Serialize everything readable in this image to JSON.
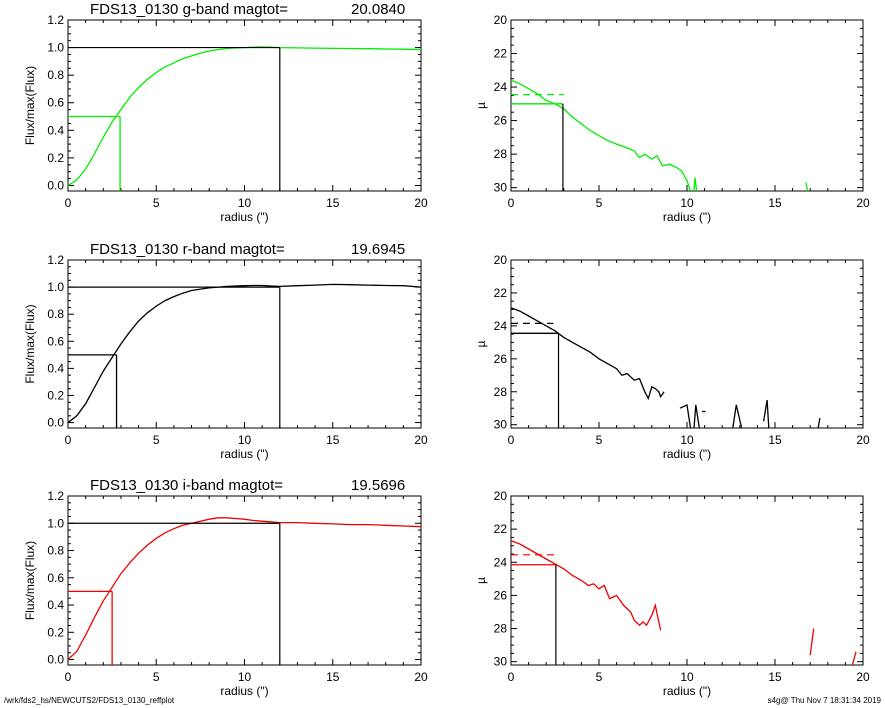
{
  "footer": {
    "path": "/wrk/fds2_hs/NEWCUTS2/FDS13_0130_reffplot",
    "stamp": "s4g@  Thu Nov  7 18:31:34 2019"
  },
  "colors": {
    "g": "#00ee00",
    "r": "#000000",
    "i": "#ee0000",
    "axes": "#000000"
  },
  "chart_data": [
    {
      "id": "g-growth",
      "type": "line",
      "title": "FDS13_0130 g-band  magtot=",
      "title_value": "20.0840",
      "xlabel": "radius (\")",
      "ylabel": "Flux/max(Flux)",
      "xlim": [
        0,
        20
      ],
      "ylim": [
        -0.04,
        1.2
      ],
      "xticks": [
        "0",
        "5",
        "10",
        "15",
        "20"
      ],
      "yticks": [
        "0.0",
        "0.2",
        "0.4",
        "0.6",
        "0.8",
        "1.0",
        "1.2"
      ],
      "series_color": "g",
      "x": [
        0,
        0.5,
        1,
        1.5,
        2,
        2.5,
        3,
        3.5,
        4,
        4.5,
        5,
        5.5,
        6,
        6.5,
        7,
        7.5,
        8,
        8.5,
        9,
        9.5,
        10,
        10.5,
        11,
        11.5,
        12,
        13,
        14,
        15,
        16,
        17,
        18,
        19,
        20
      ],
      "y": [
        0,
        0.04,
        0.12,
        0.23,
        0.35,
        0.46,
        0.55,
        0.64,
        0.71,
        0.77,
        0.82,
        0.86,
        0.89,
        0.92,
        0.94,
        0.96,
        0.975,
        0.985,
        0.993,
        0.998,
        1.0,
        1.003,
        1.005,
        1.003,
        1.0,
        0.998,
        0.996,
        0.994,
        0.993,
        0.992,
        0.99,
        0.988,
        0.985
      ],
      "half_light": {
        "radius": 2.95,
        "level": 0.5
      },
      "total_light": {
        "radius": 12.0,
        "level": 1.0
      }
    },
    {
      "id": "g-profile",
      "type": "line",
      "xlabel": "radius (\")",
      "ylabel": "µ",
      "xlim": [
        0,
        20
      ],
      "ylim": [
        20,
        30.2
      ],
      "y_inverted": true,
      "xticks": [
        "0",
        "5",
        "10",
        "15",
        "20"
      ],
      "yticks": [
        "20",
        "22",
        "24",
        "26",
        "28",
        "30"
      ],
      "series_color": "g",
      "segments": [
        [
          [
            0,
            23.6
          ],
          [
            0.5,
            23.8
          ],
          [
            1,
            24.1
          ],
          [
            1.5,
            24.4
          ],
          [
            2,
            24.8
          ],
          [
            2.5,
            25.0
          ],
          [
            3,
            25.3
          ],
          [
            3.5,
            25.8
          ],
          [
            4,
            26.2
          ],
          [
            4.5,
            26.6
          ],
          [
            5,
            26.9
          ],
          [
            5.5,
            27.2
          ],
          [
            6,
            27.4
          ],
          [
            6.5,
            27.6
          ],
          [
            7,
            27.8
          ],
          [
            7.3,
            28.2
          ],
          [
            7.6,
            28.0
          ],
          [
            8,
            28.3
          ],
          [
            8.3,
            28.1
          ],
          [
            8.6,
            28.7
          ],
          [
            9,
            28.6
          ],
          [
            9.4,
            28.8
          ],
          [
            9.7,
            29.0
          ],
          [
            10,
            29.6
          ],
          [
            10.2,
            30.2
          ]
        ],
        [
          [
            10.4,
            30.2
          ],
          [
            10.45,
            29.4
          ],
          [
            10.55,
            30.2
          ]
        ],
        [
          [
            16.75,
            29.7
          ],
          [
            16.85,
            30.2
          ]
        ]
      ],
      "eff_line": {
        "radius": 2.95,
        "mu": 25.0
      },
      "dashed": {
        "x": [
          0,
          3
        ],
        "mu": 24.45
      }
    },
    {
      "id": "r-growth",
      "type": "line",
      "title": "FDS13_0130 r-band  magtot=",
      "title_value": "19.6945",
      "xlabel": "radius (\")",
      "ylabel": "Flux/max(Flux)",
      "xlim": [
        0,
        20
      ],
      "ylim": [
        -0.04,
        1.2
      ],
      "xticks": [
        "0",
        "5",
        "10",
        "15",
        "20"
      ],
      "yticks": [
        "0.0",
        "0.2",
        "0.4",
        "0.6",
        "0.8",
        "1.0",
        "1.2"
      ],
      "series_color": "r",
      "x": [
        0,
        0.5,
        1,
        1.5,
        2,
        2.5,
        3,
        3.5,
        4,
        4.5,
        5,
        5.5,
        6,
        6.5,
        7,
        7.5,
        8,
        8.5,
        9,
        9.5,
        10,
        10.5,
        11,
        11.5,
        12,
        13,
        14,
        15,
        16,
        17,
        18,
        19,
        20
      ],
      "y": [
        0,
        0.05,
        0.14,
        0.26,
        0.38,
        0.48,
        0.58,
        0.67,
        0.75,
        0.81,
        0.86,
        0.9,
        0.93,
        0.955,
        0.975,
        0.985,
        0.995,
        1.0,
        1.005,
        1.008,
        1.01,
        1.012,
        1.012,
        1.008,
        1.005,
        1.01,
        1.015,
        1.02,
        1.018,
        1.015,
        1.012,
        1.01,
        1.0
      ],
      "half_light": {
        "radius": 2.75,
        "level": 0.5
      },
      "total_light": {
        "radius": 12.0,
        "level": 1.0
      }
    },
    {
      "id": "r-profile",
      "type": "line",
      "xlabel": "radius (\")",
      "ylabel": "µ",
      "xlim": [
        0,
        20
      ],
      "ylim": [
        20,
        30.2
      ],
      "y_inverted": true,
      "xticks": [
        "0",
        "5",
        "10",
        "15",
        "20"
      ],
      "yticks": [
        "20",
        "22",
        "24",
        "26",
        "28",
        "30"
      ],
      "series_color": "r",
      "segments": [
        [
          [
            0,
            22.9
          ],
          [
            0.5,
            23.1
          ],
          [
            1,
            23.4
          ],
          [
            1.5,
            23.7
          ],
          [
            2,
            24.0
          ],
          [
            2.5,
            24.3
          ],
          [
            3,
            24.7
          ],
          [
            3.5,
            25.0
          ],
          [
            4,
            25.3
          ],
          [
            4.5,
            25.6
          ],
          [
            5,
            26.0
          ],
          [
            5.5,
            26.3
          ],
          [
            6,
            26.6
          ],
          [
            6.3,
            27.0
          ],
          [
            6.6,
            26.9
          ],
          [
            7,
            27.3
          ],
          [
            7.3,
            27.2
          ],
          [
            7.6,
            28.0
          ],
          [
            7.8,
            28.4
          ],
          [
            8.0,
            27.7
          ],
          [
            8.2,
            27.8
          ],
          [
            8.4,
            28.0
          ],
          [
            8.5,
            28.3
          ],
          [
            8.7,
            28.0
          ]
        ],
        [
          [
            9.6,
            29.0
          ],
          [
            10.0,
            28.8
          ],
          [
            10.2,
            30.2
          ]
        ],
        [
          [
            10.4,
            30.2
          ],
          [
            10.5,
            28.8
          ],
          [
            10.7,
            30.2
          ]
        ],
        [
          [
            10.85,
            29.2
          ],
          [
            11.05,
            29.2
          ]
        ],
        [
          [
            12.6,
            30.2
          ],
          [
            12.8,
            28.8
          ],
          [
            13.1,
            30.2
          ]
        ],
        [
          [
            14.35,
            29.8
          ],
          [
            14.55,
            28.5
          ],
          [
            14.65,
            30.2
          ]
        ],
        [
          [
            17.45,
            30.2
          ],
          [
            17.55,
            29.6
          ]
        ]
      ],
      "eff_line": {
        "radius": 2.7,
        "mu": 24.45
      },
      "dashed": {
        "x": [
          0,
          2.4
        ],
        "mu": 23.85
      }
    },
    {
      "id": "i-growth",
      "type": "line",
      "title": "FDS13_0130 i-band  magtot=",
      "title_value": "19.5696",
      "xlabel": "radius (\")",
      "ylabel": "Flux/max(Flux)",
      "xlim": [
        0,
        20
      ],
      "ylim": [
        -0.04,
        1.2
      ],
      "xticks": [
        "0",
        "5",
        "10",
        "15",
        "20"
      ],
      "yticks": [
        "0.0",
        "0.2",
        "0.4",
        "0.6",
        "0.8",
        "1.0",
        "1.2"
      ],
      "series_color": "i",
      "x": [
        0,
        0.5,
        1,
        1.5,
        2,
        2.5,
        3,
        3.5,
        4,
        4.5,
        5,
        5.5,
        6,
        6.5,
        7,
        7.5,
        8,
        8.5,
        9,
        9.5,
        10,
        10.5,
        11,
        11.5,
        12,
        13,
        14,
        15,
        16,
        17,
        18,
        19,
        20
      ],
      "y": [
        0,
        0.06,
        0.18,
        0.31,
        0.43,
        0.53,
        0.63,
        0.71,
        0.78,
        0.84,
        0.89,
        0.93,
        0.96,
        0.985,
        1.0,
        1.015,
        1.03,
        1.04,
        1.04,
        1.035,
        1.03,
        1.02,
        1.015,
        1.01,
        1.005,
        1.005,
        1.0,
        0.995,
        0.99,
        0.99,
        0.985,
        0.98,
        0.975
      ],
      "half_light": {
        "radius": 2.5,
        "level": 0.5
      },
      "total_light": {
        "radius": 12.0,
        "level": 1.0
      }
    },
    {
      "id": "i-profile",
      "type": "line",
      "xlabel": "radius (\")",
      "ylabel": "µ",
      "xlim": [
        0,
        20
      ],
      "ylim": [
        20,
        30.2
      ],
      "y_inverted": true,
      "xticks": [
        "0",
        "5",
        "10",
        "15",
        "20"
      ],
      "yticks": [
        "20",
        "22",
        "24",
        "26",
        "28",
        "30"
      ],
      "series_color": "i",
      "segments": [
        [
          [
            0,
            22.7
          ],
          [
            0.5,
            22.9
          ],
          [
            1,
            23.2
          ],
          [
            1.5,
            23.5
          ],
          [
            2,
            23.8
          ],
          [
            2.5,
            24.1
          ],
          [
            3,
            24.4
          ],
          [
            3.5,
            24.8
          ],
          [
            4,
            25.1
          ],
          [
            4.4,
            25.4
          ],
          [
            4.7,
            25.3
          ],
          [
            5,
            25.6
          ],
          [
            5.3,
            25.4
          ],
          [
            5.6,
            26.2
          ],
          [
            6,
            26.0
          ],
          [
            6.4,
            26.6
          ],
          [
            6.8,
            27.0
          ],
          [
            7.0,
            27.5
          ],
          [
            7.3,
            27.8
          ],
          [
            7.5,
            27.6
          ],
          [
            7.7,
            27.8
          ],
          [
            8,
            27.2
          ],
          [
            8.2,
            26.6
          ],
          [
            8.5,
            28.1
          ]
        ],
        [
          [
            17.0,
            29.6
          ],
          [
            17.2,
            28.0
          ]
        ],
        [
          [
            19.4,
            30.2
          ],
          [
            19.6,
            29.4
          ]
        ]
      ],
      "eff_line": {
        "radius": 2.55,
        "mu": 24.15
      },
      "dashed": {
        "x": [
          0,
          2.5
        ],
        "mu": 23.55
      }
    }
  ]
}
